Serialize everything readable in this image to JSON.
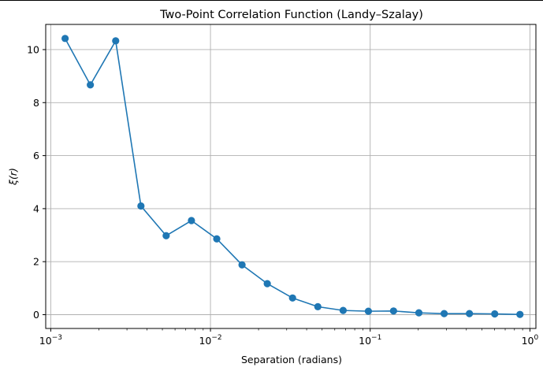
{
  "chart_data": {
    "type": "line",
    "title": "Two-Point Correlation Function (Landy–Szalay)",
    "xlabel": "Separation (radians)",
    "ylabel": "ξ(r)",
    "x_scale": "log",
    "xlim": [
      0.00093,
      1.09
    ],
    "ylim": [
      -0.52,
      10.95
    ],
    "grid": true,
    "marker": "circle",
    "color": "#1f77b4",
    "x_ticks": [
      {
        "value": 0.001,
        "base": "10",
        "exp": "−3"
      },
      {
        "value": 0.01,
        "base": "10",
        "exp": "−2"
      },
      {
        "value": 0.1,
        "base": "10",
        "exp": "−1"
      },
      {
        "value": 1,
        "base": "10",
        "exp": "0"
      }
    ],
    "y_ticks": [
      {
        "value": 0,
        "label": "0"
      },
      {
        "value": 2,
        "label": "2"
      },
      {
        "value": 4,
        "label": "4"
      },
      {
        "value": 6,
        "label": "6"
      },
      {
        "value": 8,
        "label": "8"
      },
      {
        "value": 10,
        "label": "10"
      }
    ],
    "series": [
      {
        "x": [
          0.00123,
          0.00177,
          0.00255,
          0.00367,
          0.00528,
          0.0076,
          0.01095,
          0.01576,
          0.02268,
          0.03265,
          0.047,
          0.0677,
          0.0974,
          0.14,
          0.2017,
          0.2904,
          0.418,
          0.602,
          0.866
        ],
        "y": [
          10.42,
          8.67,
          10.33,
          4.1,
          2.98,
          3.55,
          2.86,
          1.88,
          1.17,
          0.63,
          0.3,
          0.16,
          0.13,
          0.14,
          0.07,
          0.04,
          0.04,
          0.03,
          0.01
        ]
      }
    ]
  }
}
